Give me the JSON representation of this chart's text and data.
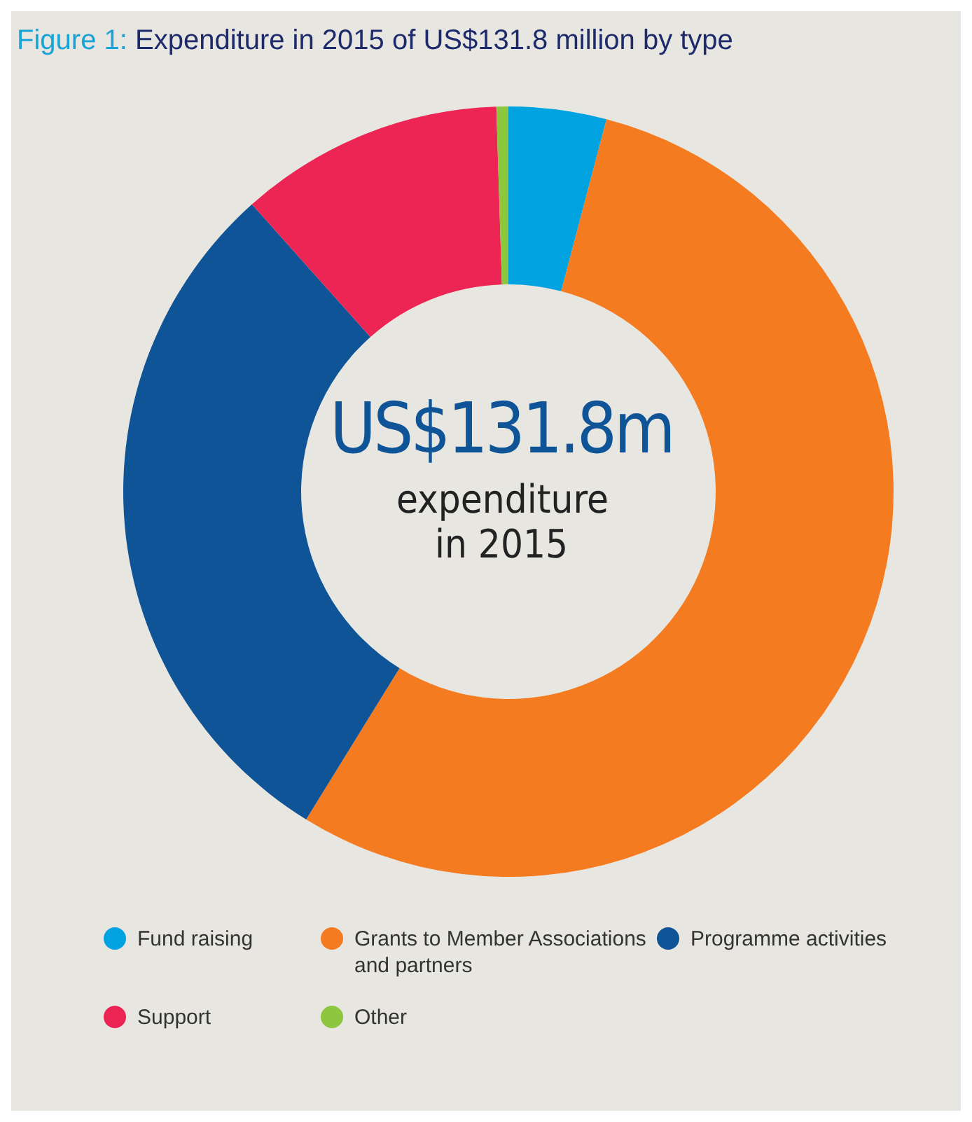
{
  "chart_data": {
    "type": "donut",
    "title": "Figure 1: Expenditure in 2015 of US$131.8 million by type",
    "categories": [
      "Fund raising",
      "Grants to Member Associations and partners",
      "Programme activities",
      "Support",
      "Other"
    ],
    "values": [
      4.1,
      54.7,
      29.6,
      11.1,
      0.5
    ],
    "colors": [
      "#00a3e0",
      "#f47b20",
      "#0f5496",
      "#ec2554",
      "#8dc63f"
    ],
    "annotations": [
      "US$131.8m",
      "expenditure in 2015"
    ],
    "legend": "bottom"
  }
}
